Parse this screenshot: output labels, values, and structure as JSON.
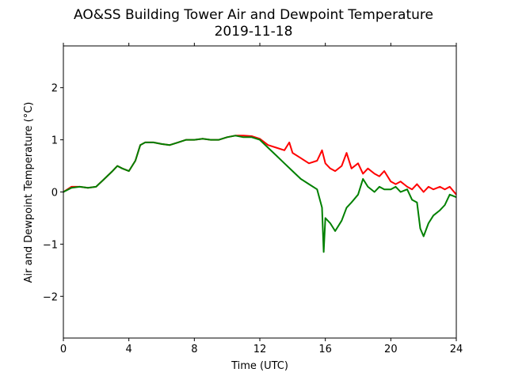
{
  "chart_data": {
    "type": "line",
    "title": "AO&SS Building Tower Air and Dewpoint Temperature",
    "subtitle": "2019-11-18",
    "xlabel": "Time (UTC)",
    "ylabel": "Air and Dewpoint Temperature (°C)",
    "xlim": [
      0,
      24
    ],
    "ylim": [
      -2.8,
      2.8
    ],
    "xticks": [
      0,
      4,
      8,
      12,
      16,
      20,
      24
    ],
    "yticks": [
      -2,
      -1,
      0,
      1,
      2
    ],
    "grid": false,
    "legend": "none",
    "colors": {
      "air": "#ff0000",
      "dewpoint": "#008000"
    },
    "series": [
      {
        "key": "air",
        "x": [
          0,
          0.5,
          1,
          1.5,
          2,
          2.5,
          3,
          3.3,
          3.6,
          4,
          4.4,
          4.7,
          5,
          5.5,
          6,
          6.5,
          7,
          7.5,
          8,
          8.5,
          9,
          9.5,
          10,
          10.5,
          11,
          11.5,
          12,
          12.5,
          13,
          13.5,
          13.8,
          14,
          14.5,
          15,
          15.5,
          15.8,
          16,
          16.3,
          16.6,
          17,
          17.3,
          17.6,
          18,
          18.3,
          18.6,
          19,
          19.3,
          19.6,
          20,
          20.3,
          20.6,
          21,
          21.3,
          21.6,
          22,
          22.3,
          22.6,
          23,
          23.3,
          23.6,
          24
        ],
        "values": [
          0.0,
          0.1,
          0.1,
          0.08,
          0.1,
          0.25,
          0.4,
          0.5,
          0.45,
          0.4,
          0.6,
          0.9,
          0.95,
          0.95,
          0.92,
          0.9,
          0.95,
          1.0,
          1.0,
          1.02,
          1.0,
          1.0,
          1.05,
          1.08,
          1.08,
          1.07,
          1.02,
          0.9,
          0.85,
          0.8,
          0.95,
          0.75,
          0.65,
          0.55,
          0.6,
          0.8,
          0.55,
          0.45,
          0.4,
          0.5,
          0.75,
          0.45,
          0.55,
          0.35,
          0.45,
          0.35,
          0.3,
          0.4,
          0.2,
          0.15,
          0.2,
          0.1,
          0.05,
          0.15,
          0.0,
          0.1,
          0.05,
          0.1,
          0.05,
          0.1,
          -0.05
        ]
      },
      {
        "key": "dewpoint",
        "x": [
          0,
          0.5,
          1,
          1.5,
          2,
          2.5,
          3,
          3.3,
          3.6,
          4,
          4.4,
          4.7,
          5,
          5.5,
          6,
          6.5,
          7,
          7.5,
          8,
          8.5,
          9,
          9.5,
          10,
          10.5,
          11,
          11.5,
          12,
          12.5,
          13,
          13.5,
          14,
          14.5,
          15,
          15.5,
          15.8,
          15.9,
          16,
          16.3,
          16.6,
          17,
          17.3,
          17.6,
          18,
          18.3,
          18.6,
          19,
          19.3,
          19.6,
          20,
          20.3,
          20.6,
          21,
          21.3,
          21.6,
          21.8,
          22,
          22.3,
          22.6,
          23,
          23.3,
          23.6,
          24
        ],
        "values": [
          0.0,
          0.08,
          0.1,
          0.08,
          0.1,
          0.25,
          0.4,
          0.5,
          0.45,
          0.4,
          0.6,
          0.9,
          0.95,
          0.95,
          0.92,
          0.9,
          0.95,
          1.0,
          1.0,
          1.02,
          1.0,
          1.0,
          1.05,
          1.08,
          1.05,
          1.05,
          1.0,
          0.85,
          0.7,
          0.55,
          0.4,
          0.25,
          0.15,
          0.05,
          -0.3,
          -1.15,
          -0.5,
          -0.6,
          -0.75,
          -0.55,
          -0.3,
          -0.2,
          -0.05,
          0.25,
          0.1,
          0.0,
          0.1,
          0.05,
          0.05,
          0.1,
          0.0,
          0.05,
          -0.15,
          -0.2,
          -0.7,
          -0.85,
          -0.6,
          -0.45,
          -0.35,
          -0.25,
          -0.05,
          -0.1
        ]
      }
    ]
  }
}
